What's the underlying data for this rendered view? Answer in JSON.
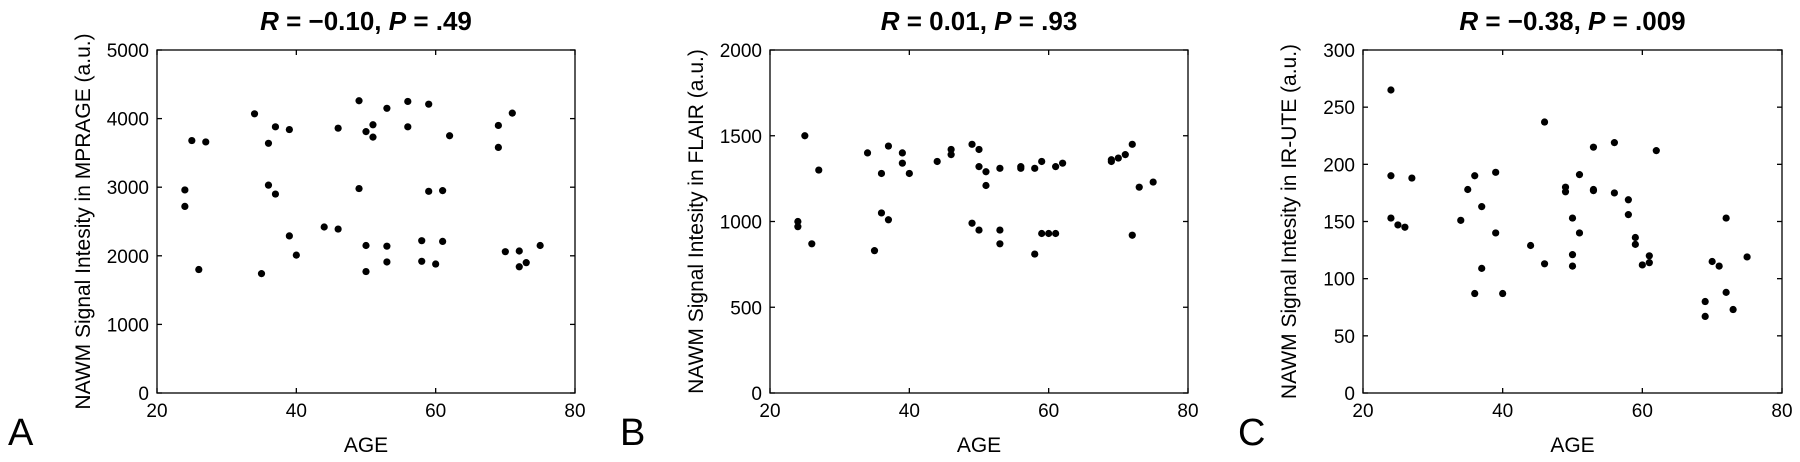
{
  "chart_data": [
    {
      "type": "scatter",
      "panel_label": "A",
      "title_parts": [
        "R",
        " = −0.10, ",
        "P",
        " = .49"
      ],
      "xlabel": "AGE",
      "ylabel": "NAWM Signal Intesity in MPRAGE (a.u.)",
      "xlim": [
        20,
        80
      ],
      "ylim": [
        0,
        5000
      ],
      "xticks": [
        20,
        40,
        60,
        80
      ],
      "yticks": [
        0,
        1000,
        2000,
        3000,
        4000,
        5000
      ],
      "grid": false,
      "points": [
        [
          24,
          2960
        ],
        [
          24,
          2720
        ],
        [
          25,
          3680
        ],
        [
          26,
          1800
        ],
        [
          27,
          3660
        ],
        [
          34,
          4070
        ],
        [
          35,
          1740
        ],
        [
          36,
          3640
        ],
        [
          36,
          3030
        ],
        [
          37,
          3880
        ],
        [
          37,
          2900
        ],
        [
          39,
          3840
        ],
        [
          39,
          2290
        ],
        [
          40,
          2010
        ],
        [
          44,
          2420
        ],
        [
          46,
          3860
        ],
        [
          46,
          2390
        ],
        [
          49,
          4260
        ],
        [
          49,
          2980
        ],
        [
          50,
          3810
        ],
        [
          50,
          2150
        ],
        [
          50,
          1770
        ],
        [
          51,
          3910
        ],
        [
          51,
          3730
        ],
        [
          53,
          4150
        ],
        [
          53,
          2140
        ],
        [
          53,
          1910
        ],
        [
          56,
          4250
        ],
        [
          56,
          3880
        ],
        [
          58,
          2220
        ],
        [
          58,
          1920
        ],
        [
          59,
          4210
        ],
        [
          59,
          2940
        ],
        [
          60,
          1880
        ],
        [
          61,
          2950
        ],
        [
          61,
          2210
        ],
        [
          62,
          3750
        ],
        [
          69,
          3900
        ],
        [
          69,
          3580
        ],
        [
          70,
          2060
        ],
        [
          71,
          4080
        ],
        [
          72,
          2070
        ],
        [
          72,
          1840
        ],
        [
          73,
          1900
        ],
        [
          75,
          2150
        ]
      ]
    },
    {
      "type": "scatter",
      "panel_label": "B",
      "title_parts": [
        "R",
        " = 0.01, ",
        "P",
        " = .93"
      ],
      "xlabel": "AGE",
      "ylabel": "NAWM Signal Intesity in FLAIR (a.u.)",
      "xlim": [
        20,
        80
      ],
      "ylim": [
        0,
        2000
      ],
      "xticks": [
        20,
        40,
        60,
        80
      ],
      "yticks": [
        0,
        500,
        1000,
        1500,
        2000
      ],
      "grid": false,
      "points": [
        [
          24,
          1000
        ],
        [
          24,
          970
        ],
        [
          25,
          1500
        ],
        [
          26,
          870
        ],
        [
          27,
          1300
        ],
        [
          34,
          1400
        ],
        [
          35,
          830
        ],
        [
          36,
          1280
        ],
        [
          36,
          1050
        ],
        [
          37,
          1440
        ],
        [
          37,
          1010
        ],
        [
          39,
          1400
        ],
        [
          39,
          1340
        ],
        [
          40,
          1280
        ],
        [
          44,
          1350
        ],
        [
          46,
          1420
        ],
        [
          46,
          1390
        ],
        [
          49,
          1450
        ],
        [
          49,
          990
        ],
        [
          50,
          1420
        ],
        [
          50,
          1320
        ],
        [
          50,
          950
        ],
        [
          51,
          1290
        ],
        [
          51,
          1210
        ],
        [
          53,
          1310
        ],
        [
          53,
          950
        ],
        [
          53,
          870
        ],
        [
          56,
          1320
        ],
        [
          56,
          1310
        ],
        [
          58,
          1310
        ],
        [
          58,
          810
        ],
        [
          59,
          1350
        ],
        [
          59,
          930
        ],
        [
          60,
          930
        ],
        [
          61,
          1320
        ],
        [
          61,
          930
        ],
        [
          62,
          1340
        ],
        [
          69,
          1360
        ],
        [
          69,
          1350
        ],
        [
          70,
          1370
        ],
        [
          71,
          1390
        ],
        [
          72,
          1450
        ],
        [
          72,
          920
        ],
        [
          73,
          1200
        ],
        [
          75,
          1230
        ]
      ]
    },
    {
      "type": "scatter",
      "panel_label": "C",
      "title_parts": [
        "R",
        " = −0.38, ",
        "P",
        " = .009"
      ],
      "xlabel": "AGE",
      "ylabel": "NAWM Signal Intesity in IR-UTE (a.u.)",
      "xlim": [
        20,
        80
      ],
      "ylim": [
        0,
        300
      ],
      "xticks": [
        20,
        40,
        60,
        80
      ],
      "yticks": [
        0,
        50,
        100,
        150,
        200,
        250,
        300
      ],
      "grid": false,
      "points": [
        [
          24,
          265
        ],
        [
          24,
          190
        ],
        [
          24,
          153
        ],
        [
          25,
          147
        ],
        [
          26,
          145
        ],
        [
          27,
          188
        ],
        [
          34,
          151
        ],
        [
          35,
          178
        ],
        [
          36,
          190
        ],
        [
          36,
          87
        ],
        [
          37,
          163
        ],
        [
          37,
          109
        ],
        [
          39,
          193
        ],
        [
          39,
          140
        ],
        [
          40,
          87
        ],
        [
          44,
          129
        ],
        [
          46,
          237
        ],
        [
          46,
          113
        ],
        [
          49,
          180
        ],
        [
          49,
          176
        ],
        [
          50,
          153
        ],
        [
          50,
          121
        ],
        [
          50,
          111
        ],
        [
          51,
          191
        ],
        [
          51,
          140
        ],
        [
          53,
          215
        ],
        [
          53,
          178
        ],
        [
          53,
          177
        ],
        [
          56,
          219
        ],
        [
          56,
          175
        ],
        [
          58,
          169
        ],
        [
          58,
          156
        ],
        [
          59,
          136
        ],
        [
          59,
          130
        ],
        [
          60,
          112
        ],
        [
          61,
          120
        ],
        [
          61,
          114
        ],
        [
          62,
          212
        ],
        [
          69,
          80
        ],
        [
          69,
          67
        ],
        [
          70,
          115
        ],
        [
          71,
          111
        ],
        [
          72,
          153
        ],
        [
          72,
          88
        ],
        [
          73,
          73
        ],
        [
          75,
          119
        ]
      ]
    }
  ]
}
